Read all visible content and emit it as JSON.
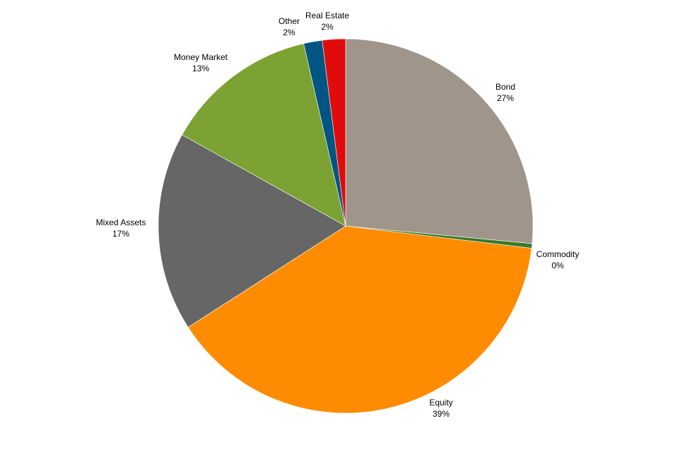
{
  "chart_data": {
    "type": "pie",
    "title": "",
    "start_angle_deg": 0,
    "direction": "clockwise",
    "slices": [
      {
        "label": "Bond",
        "value_label": "27%",
        "value": 26.5,
        "color": "#a0958a"
      },
      {
        "label": "Commodity",
        "value_label": "0%",
        "value": 0.4,
        "color": "#3b7a2a"
      },
      {
        "label": "Equity",
        "value_label": "39%",
        "value": 39.0,
        "color": "#ff8c00"
      },
      {
        "label": "Mixed Assets",
        "value_label": "17%",
        "value": 17.2,
        "color": "#666666"
      },
      {
        "label": "Money Market",
        "value_label": "13%",
        "value": 13.3,
        "color": "#7ba233"
      },
      {
        "label": "Other",
        "value_label": "2%",
        "value": 1.6,
        "color": "#005582"
      },
      {
        "label": "Real Estate",
        "value_label": "2%",
        "value": 2.0,
        "color": "#e00b0b"
      }
    ],
    "legend": "none",
    "labels": "outside-with-percent"
  }
}
